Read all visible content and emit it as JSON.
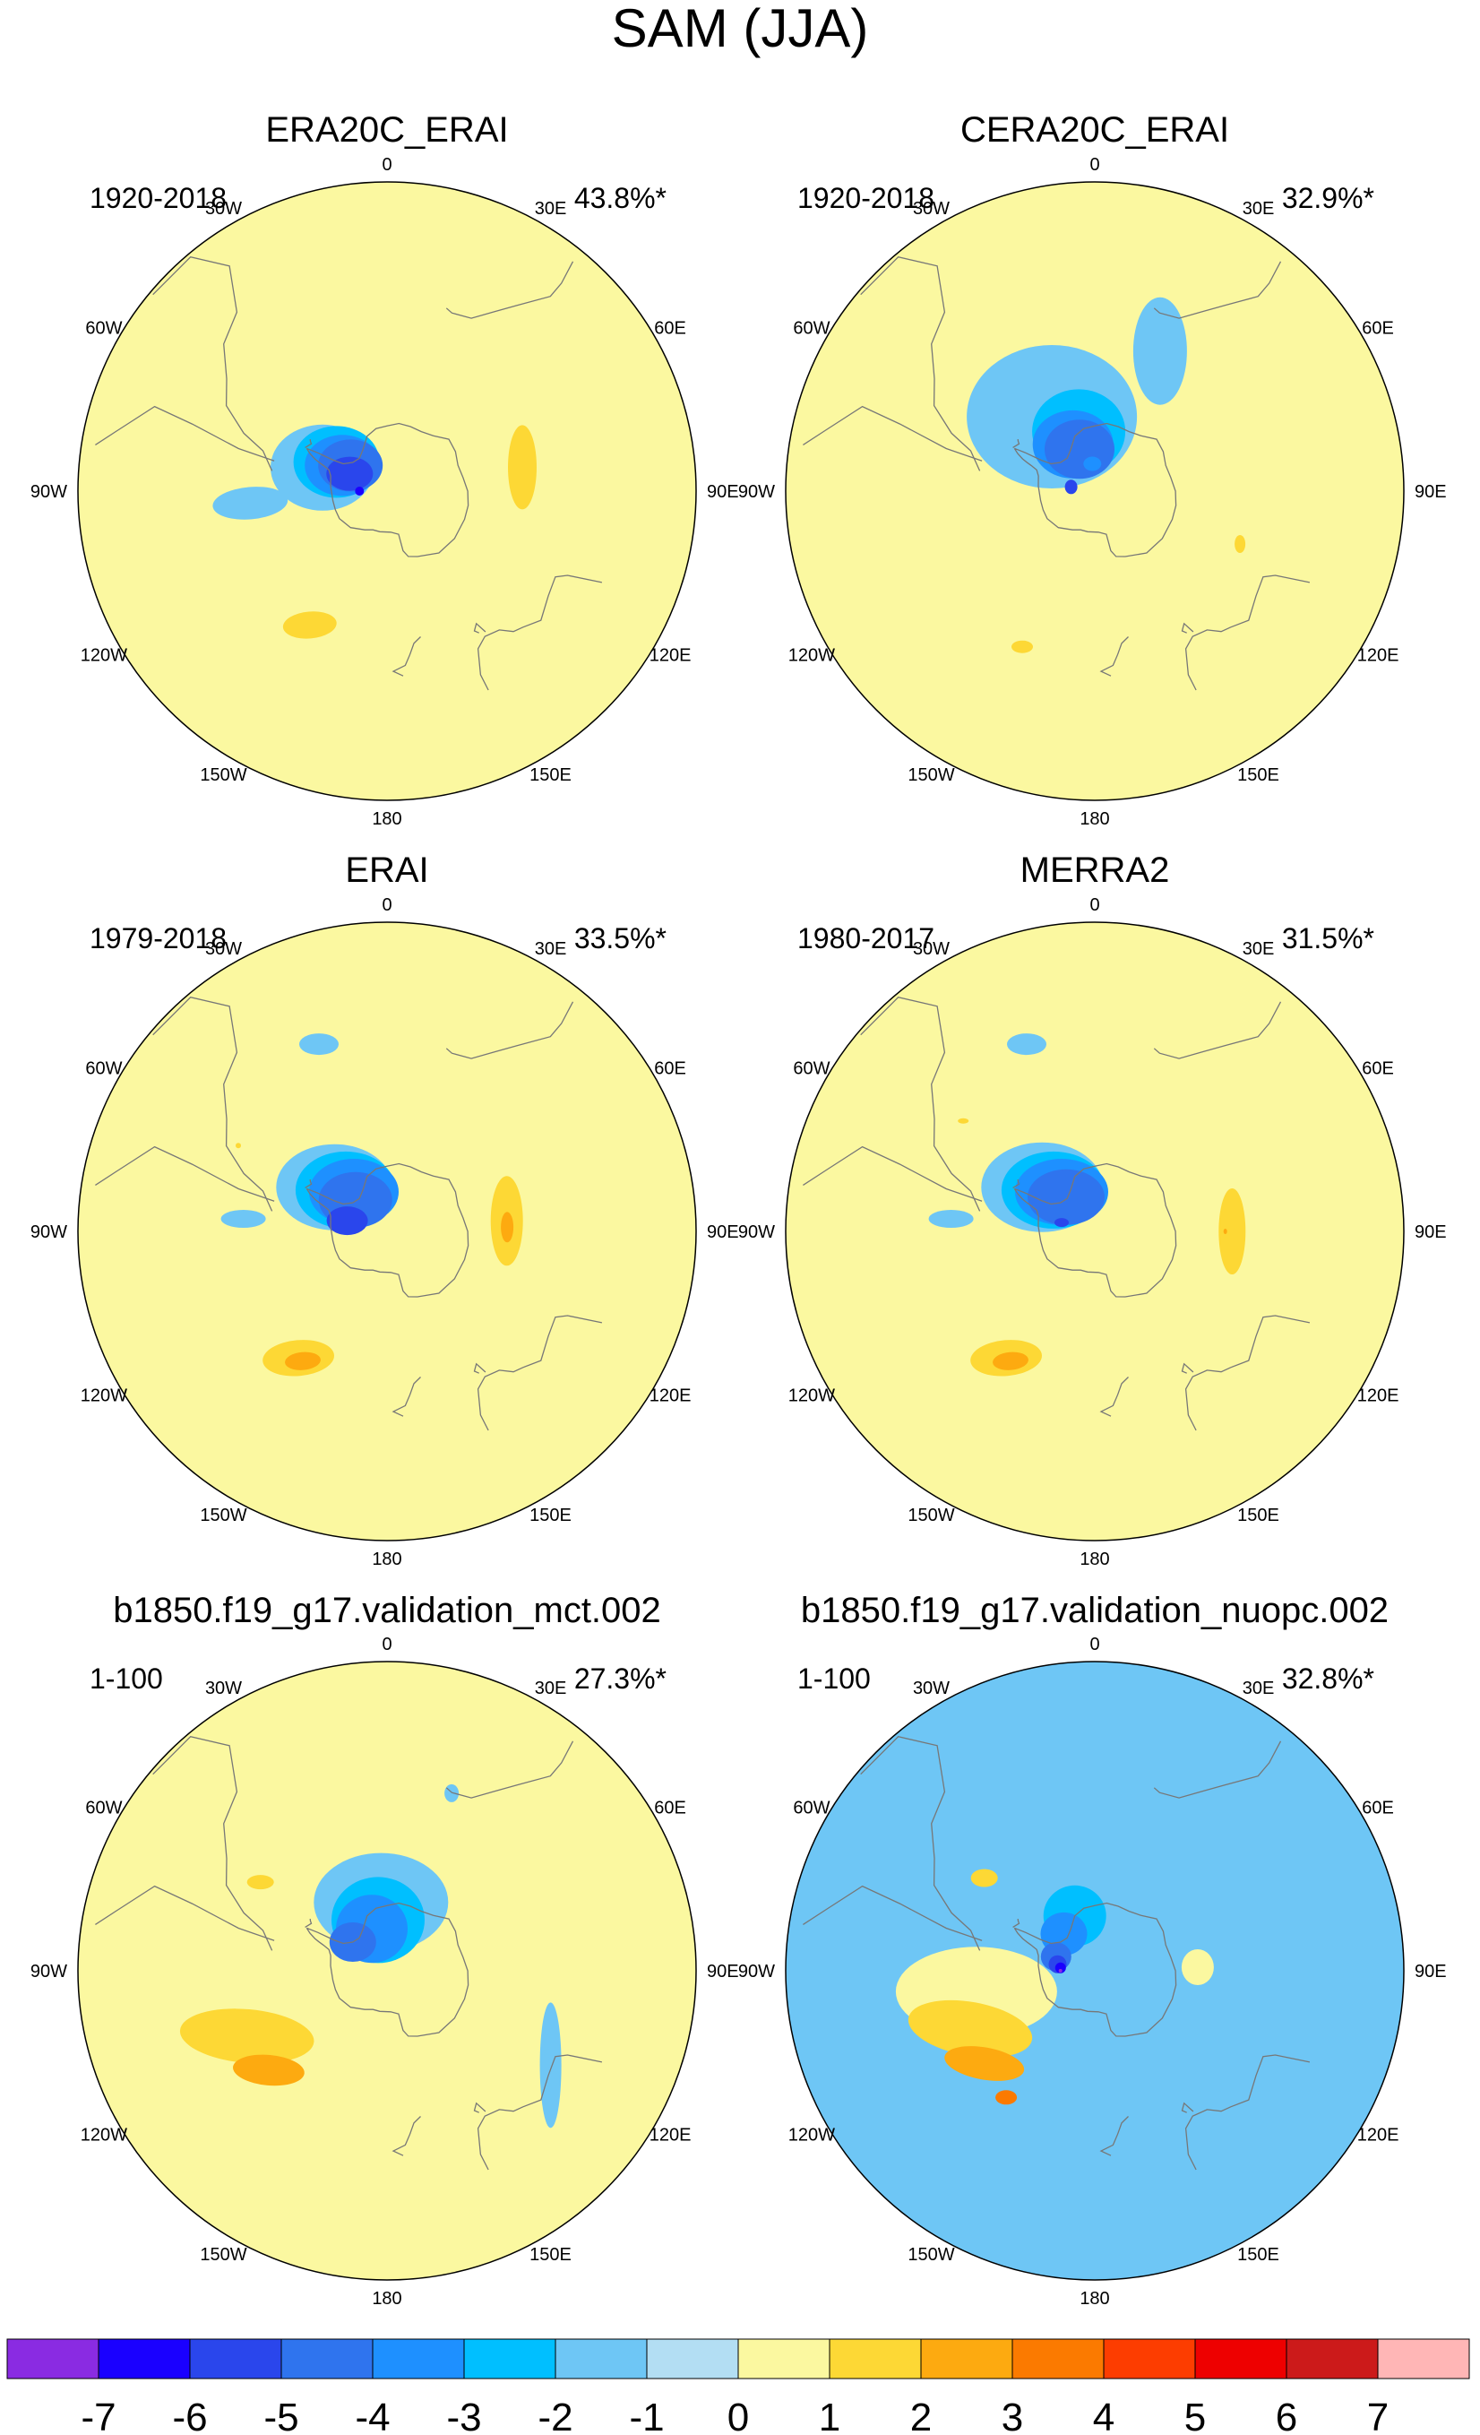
{
  "figure_title": "SAM (JJA)",
  "colors": {
    "coast": "#777777",
    "border": "#000000",
    "levels": [
      "#8a2be2",
      "#1a00ff",
      "#2a46ec",
      "#2f74ee",
      "#1e90ff",
      "#00bfff",
      "#6ec6f5",
      "#b3def3",
      "#fbf8a0",
      "#fdd835",
      "#fdaa10",
      "#fb7a00",
      "#fd3d00",
      "#ee0000",
      "#cc1a1a",
      "#ffb6b6"
    ]
  },
  "chart_data": [
    {
      "type": "polar-contour-map",
      "title": "ERA20C_ERAI",
      "period": "1920-2018",
      "variance": "43.8%*",
      "lon_labels": [
        "0",
        "30E",
        "60E",
        "90E",
        "120E",
        "150E",
        "180",
        "150W",
        "120W",
        "90W",
        "60W",
        "30W"
      ],
      "anomalies": [
        {
          "level": -1,
          "lon": -70,
          "lat": -70,
          "rx": 58,
          "ry": 48,
          "rot": 0
        },
        {
          "level": -1,
          "lon": -95,
          "lat": -50,
          "rx": 42,
          "ry": 18,
          "rot": -5
        },
        {
          "level": -2,
          "lon": -60,
          "lat": -73,
          "rx": 48,
          "ry": 40,
          "rot": 0
        },
        {
          "level": -3,
          "lon": -60,
          "lat": -75,
          "rx": 42,
          "ry": 34,
          "rot": 0
        },
        {
          "level": -4,
          "lon": -55,
          "lat": -77,
          "rx": 36,
          "ry": 29,
          "rot": 0
        },
        {
          "level": -5,
          "lon": -65,
          "lat": -78,
          "rx": 26,
          "ry": 19,
          "rot": 0
        },
        {
          "level": -6,
          "lon": -90,
          "lat": -82,
          "rx": 5,
          "ry": 5,
          "rot": 0
        },
        {
          "level": 1,
          "lon": 80,
          "lat": -50,
          "rx": 16,
          "ry": 47,
          "rot": 0
        },
        {
          "level": 1,
          "lon": -150,
          "lat": -45,
          "rx": 30,
          "ry": 15,
          "rot": -5
        }
      ]
    },
    {
      "type": "polar-contour-map",
      "title": "CERA20C_ERAI",
      "period": "1920-2018",
      "variance": "32.9%*",
      "lon_labels": [
        "0",
        "30E",
        "60E",
        "90E",
        "120E",
        "150E",
        "180",
        "150W",
        "120W",
        "90W",
        "60W",
        "30W"
      ],
      "anomalies": [
        {
          "level": -1,
          "lon": -30,
          "lat": -65,
          "rx": 95,
          "ry": 80,
          "rot": 0
        },
        {
          "level": -1,
          "lon": 25,
          "lat": -45,
          "rx": 30,
          "ry": 60,
          "rot": 0
        },
        {
          "level": -2,
          "lon": -15,
          "lat": -72,
          "rx": 52,
          "ry": 47,
          "rot": 0
        },
        {
          "level": -3,
          "lon": -25,
          "lat": -75,
          "rx": 45,
          "ry": 38,
          "rot": 0
        },
        {
          "level": -4,
          "lon": -20,
          "lat": -77,
          "rx": 39,
          "ry": 33,
          "rot": 0
        },
        {
          "level": -3,
          "lon": -5,
          "lat": -82,
          "rx": 10,
          "ry": 8,
          "rot": 0
        },
        {
          "level": -5,
          "lon": -80,
          "lat": -83,
          "rx": 7,
          "ry": 8,
          "rot": 0
        },
        {
          "level": 1,
          "lon": 110,
          "lat": -45,
          "rx": 6,
          "ry": 10,
          "rot": 0
        },
        {
          "level": 1,
          "lon": -155,
          "lat": -40,
          "rx": 12,
          "ry": 7,
          "rot": 0
        }
      ]
    },
    {
      "type": "polar-contour-map",
      "title": "ERAI",
      "period": "1979-2018",
      "variance": "33.5%*",
      "lon_labels": [
        "0",
        "30E",
        "60E",
        "90E",
        "120E",
        "150E",
        "180",
        "150W",
        "120W",
        "90W",
        "60W",
        "30W"
      ],
      "anomalies": [
        {
          "level": -1,
          "lon": -50,
          "lat": -70,
          "rx": 65,
          "ry": 48,
          "rot": 0
        },
        {
          "level": -1,
          "lon": -20,
          "lat": -32,
          "rx": 22,
          "ry": 12,
          "rot": 0
        },
        {
          "level": -1,
          "lon": -85,
          "lat": -48,
          "rx": 25,
          "ry": 10,
          "rot": 0
        },
        {
          "level": -2,
          "lon": -45,
          "lat": -73,
          "rx": 56,
          "ry": 43,
          "rot": 0
        },
        {
          "level": -3,
          "lon": -40,
          "lat": -75,
          "rx": 50,
          "ry": 37,
          "rot": 0
        },
        {
          "level": -4,
          "lon": -45,
          "lat": -77,
          "rx": 41,
          "ry": 31,
          "rot": 0
        },
        {
          "level": -5,
          "lon": -75,
          "lat": -78,
          "rx": 23,
          "ry": 16,
          "rot": 0
        },
        {
          "level": 1,
          "lon": 85,
          "lat": -55,
          "rx": 18,
          "ry": 50,
          "rot": 0
        },
        {
          "level": 2,
          "lon": 88,
          "lat": -55,
          "rx": 7,
          "ry": 17,
          "rot": 0
        },
        {
          "level": 1,
          "lon": -145,
          "lat": -45,
          "rx": 40,
          "ry": 20,
          "rot": -5
        },
        {
          "level": 2,
          "lon": -147,
          "lat": -45,
          "rx": 20,
          "ry": 10,
          "rot": -5
        },
        {
          "level": 1,
          "lon": -60,
          "lat": -40,
          "rx": 3,
          "ry": 3,
          "rot": 0
        }
      ]
    },
    {
      "type": "polar-contour-map",
      "title": "MERRA2",
      "period": "1980-2017",
      "variance": "31.5%*",
      "lon_labels": [
        "0",
        "30E",
        "60E",
        "90E",
        "120E",
        "150E",
        "180",
        "150W",
        "120W",
        "90W",
        "60W",
        "30W"
      ],
      "anomalies": [
        {
          "level": -1,
          "lon": -50,
          "lat": -70,
          "rx": 68,
          "ry": 50,
          "rot": 0
        },
        {
          "level": -1,
          "lon": -20,
          "lat": -32,
          "rx": 22,
          "ry": 12,
          "rot": 0
        },
        {
          "level": -1,
          "lon": -85,
          "lat": -48,
          "rx": 25,
          "ry": 10,
          "rot": 0
        },
        {
          "level": -2,
          "lon": -45,
          "lat": -73,
          "rx": 58,
          "ry": 43,
          "rot": 0
        },
        {
          "level": -3,
          "lon": -40,
          "lat": -75,
          "rx": 52,
          "ry": 37,
          "rot": 0
        },
        {
          "level": -4,
          "lon": -40,
          "lat": -77,
          "rx": 43,
          "ry": 31,
          "rot": 0
        },
        {
          "level": -5,
          "lon": -75,
          "lat": -80,
          "rx": 8,
          "ry": 5,
          "rot": 0
        },
        {
          "level": 1,
          "lon": 90,
          "lat": -50,
          "rx": 15,
          "ry": 48,
          "rot": 0
        },
        {
          "level": 2,
          "lon": 90,
          "lat": -52,
          "rx": 2,
          "ry": 3,
          "rot": 0
        },
        {
          "level": 1,
          "lon": -145,
          "lat": -45,
          "rx": 40,
          "ry": 20,
          "rot": -5
        },
        {
          "level": 2,
          "lon": -147,
          "lat": -45,
          "rx": 20,
          "ry": 10,
          "rot": -5
        },
        {
          "level": 1,
          "lon": -50,
          "lat": -40,
          "rx": 6,
          "ry": 3,
          "rot": 0
        }
      ]
    },
    {
      "type": "polar-contour-map",
      "title": "b1850.f19_g17.validation_mct.002",
      "period": "1-100",
      "variance": "27.3%*",
      "lon_labels": [
        "0",
        "30E",
        "60E",
        "90E",
        "120E",
        "150E",
        "180",
        "150W",
        "120W",
        "90W",
        "60W",
        "30W"
      ],
      "anomalies": [
        {
          "level": -1,
          "lon": -5,
          "lat": -70,
          "rx": 75,
          "ry": 55,
          "rot": 0
        },
        {
          "level": -1,
          "lon": 20,
          "lat": -35,
          "rx": 8,
          "ry": 10,
          "rot": 0
        },
        {
          "level": -1,
          "lon": 120,
          "lat": -35,
          "rx": 12,
          "ry": 70,
          "rot": 0
        },
        {
          "level": -2,
          "lon": -10,
          "lat": -75,
          "rx": 52,
          "ry": 48,
          "rot": 0
        },
        {
          "level": -3,
          "lon": -20,
          "lat": -77,
          "rx": 40,
          "ry": 38,
          "rot": 0
        },
        {
          "level": -4,
          "lon": -50,
          "lat": -77,
          "rx": 26,
          "ry": 22,
          "rot": 0
        },
        {
          "level": 1,
          "lon": -115,
          "lat": -45,
          "rx": 75,
          "ry": 30,
          "rot": 5
        },
        {
          "level": 1,
          "lon": -55,
          "lat": -45,
          "rx": 15,
          "ry": 8,
          "rot": 0
        },
        {
          "level": 2,
          "lon": -130,
          "lat": -45,
          "rx": 40,
          "ry": 17,
          "rot": 5
        }
      ]
    },
    {
      "type": "polar-contour-map",
      "title": "b1850.f19_g17.validation_nuopc.002",
      "period": "1-100",
      "variance": "32.8%*",
      "lon_labels": [
        "0",
        "30E",
        "60E",
        "90E",
        "120E",
        "150E",
        "180",
        "150W",
        "120W",
        "90W",
        "60W",
        "30W"
      ],
      "background_level": -1,
      "anomalies": [
        {
          "level": 0,
          "lon": -100,
          "lat": -55,
          "rx": 90,
          "ry": 50,
          "rot": 0
        },
        {
          "level": 0,
          "lon": 88,
          "lat": -60,
          "rx": 18,
          "ry": 20,
          "rot": 0
        },
        {
          "level": 1,
          "lon": -115,
          "lat": -50,
          "rx": 70,
          "ry": 30,
          "rot": 10
        },
        {
          "level": 1,
          "lon": -50,
          "lat": -48,
          "rx": 15,
          "ry": 10,
          "rot": 0
        },
        {
          "level": 2,
          "lon": -130,
          "lat": -48,
          "rx": 45,
          "ry": 18,
          "rot": 10
        },
        {
          "level": 3,
          "lon": -145,
          "lat": -45,
          "rx": 12,
          "ry": 8,
          "rot": 0
        },
        {
          "level": -2,
          "lon": -20,
          "lat": -73,
          "rx": 35,
          "ry": 34,
          "rot": 0
        },
        {
          "level": -3,
          "lon": -40,
          "lat": -76,
          "rx": 26,
          "ry": 24,
          "rot": 0
        },
        {
          "level": -4,
          "lon": -70,
          "lat": -78,
          "rx": 17,
          "ry": 16,
          "rot": 0
        },
        {
          "level": -5,
          "lon": -80,
          "lat": -79,
          "rx": 10,
          "ry": 10,
          "rot": 0
        },
        {
          "level": -6,
          "lon": -85,
          "lat": -80,
          "rx": 6,
          "ry": 6,
          "rot": 0
        },
        {
          "level": -7,
          "lon": -90,
          "lat": -80,
          "rx": 2,
          "ry": 2,
          "rot": 0
        }
      ]
    }
  ],
  "colorbar": {
    "levels": [
      "-7",
      "-6",
      "-5",
      "-4",
      "-3",
      "-2",
      "-1",
      "0",
      "1",
      "2",
      "3",
      "4",
      "5",
      "6",
      "7"
    ]
  }
}
